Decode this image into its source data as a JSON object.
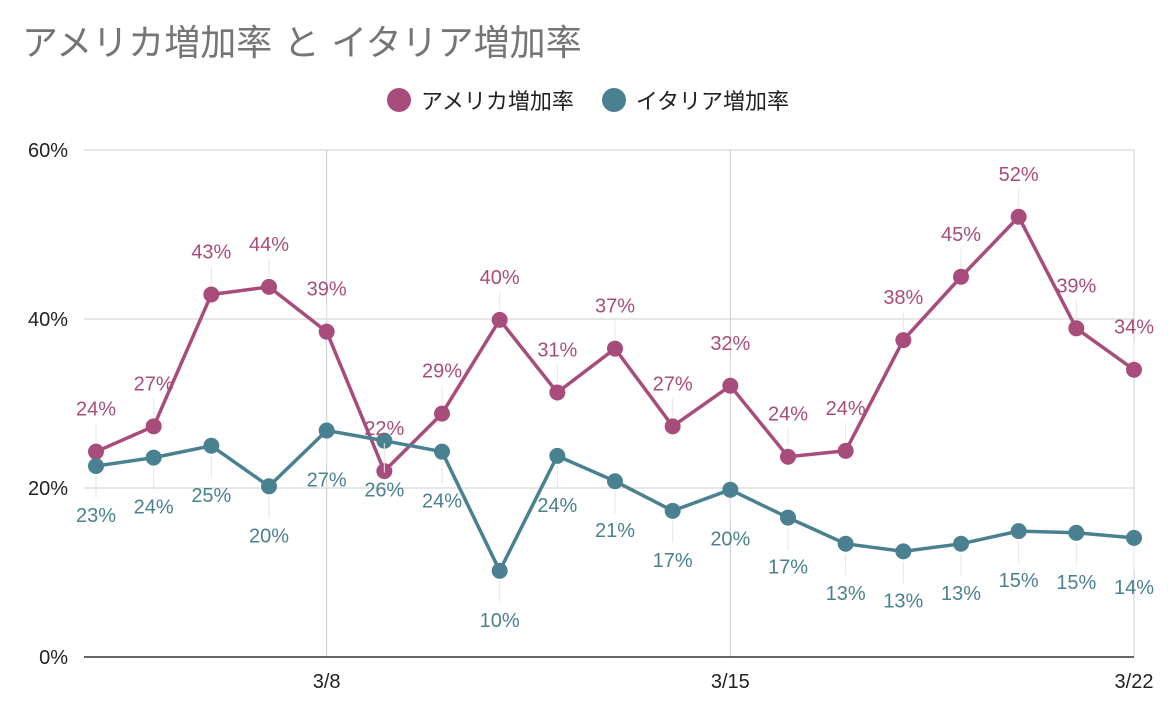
{
  "chart_data": {
    "type": "line",
    "title": "アメリカ増加率 と イタリア増加率",
    "ylim": [
      0,
      60
    ],
    "y_ticks": [
      "0%",
      "20%",
      "40%",
      "60%"
    ],
    "x_tick_labels": [
      {
        "index": 4,
        "label": "3/8"
      },
      {
        "index": 11,
        "label": "3/15"
      },
      {
        "index": 18,
        "label": "3/22"
      }
    ],
    "grid": true,
    "legend_position": "top",
    "series": [
      {
        "name": "アメリカ増加率",
        "color": "#A84D7B",
        "values": [
          24.3,
          27.3,
          42.9,
          43.8,
          38.5,
          22.0,
          28.8,
          39.9,
          31.3,
          36.5,
          27.3,
          32.1,
          23.7,
          24.4,
          37.5,
          45.0,
          52.1,
          38.9,
          34.0
        ],
        "labels": [
          "24%",
          "27%",
          "43%",
          "44%",
          "39%",
          "22%",
          "29%",
          "40%",
          "31%",
          "37%",
          "27%",
          "32%",
          "24%",
          "24%",
          "38%",
          "45%",
          "52%",
          "39%",
          "34%"
        ]
      },
      {
        "name": "イタリア増加率",
        "color": "#4A8190",
        "values": [
          22.6,
          23.6,
          25.0,
          20.2,
          26.8,
          25.6,
          24.3,
          10.2,
          23.8,
          20.8,
          17.3,
          19.8,
          16.5,
          13.4,
          12.5,
          13.4,
          14.9,
          14.7,
          14.1
        ],
        "labels": [
          "23%",
          "24%",
          "25%",
          "20%",
          "27%",
          "26%",
          "24%",
          "10%",
          "24%",
          "21%",
          "17%",
          "20%",
          "17%",
          "13%",
          "13%",
          "13%",
          "15%",
          "15%",
          "14%"
        ]
      }
    ]
  }
}
